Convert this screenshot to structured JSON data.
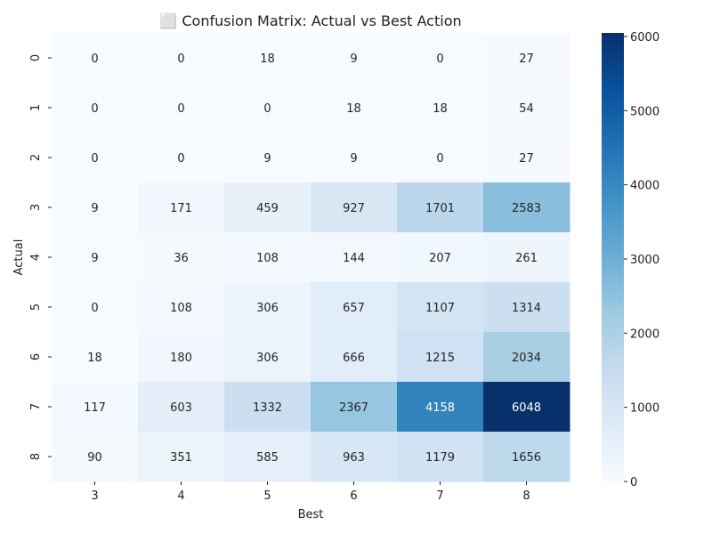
{
  "chart_data": {
    "type": "heatmap",
    "title": "⬜ Confusion Matrix: Actual vs Best Action",
    "xlabel": "Best",
    "ylabel": "Actual",
    "x_categories": [
      "3",
      "4",
      "5",
      "6",
      "7",
      "8"
    ],
    "y_categories": [
      "0",
      "1",
      "2",
      "3",
      "4",
      "5",
      "6",
      "7",
      "8"
    ],
    "values": [
      [
        0,
        0,
        18,
        9,
        0,
        27
      ],
      [
        0,
        0,
        0,
        18,
        18,
        54
      ],
      [
        0,
        0,
        9,
        9,
        0,
        27
      ],
      [
        9,
        171,
        459,
        927,
        1701,
        2583
      ],
      [
        9,
        36,
        108,
        144,
        207,
        261
      ],
      [
        0,
        108,
        306,
        657,
        1107,
        1314
      ],
      [
        18,
        180,
        306,
        666,
        1215,
        2034
      ],
      [
        117,
        603,
        1332,
        2367,
        4158,
        6048
      ],
      [
        90,
        351,
        585,
        963,
        1179,
        1656
      ]
    ],
    "colorbar": {
      "min": 0,
      "max": 6048,
      "ticks": [
        0,
        1000,
        2000,
        3000,
        4000,
        5000,
        6000
      ],
      "colormap": "Blues"
    },
    "annotations": true,
    "grid": false,
    "legend": "colorbar-right"
  }
}
